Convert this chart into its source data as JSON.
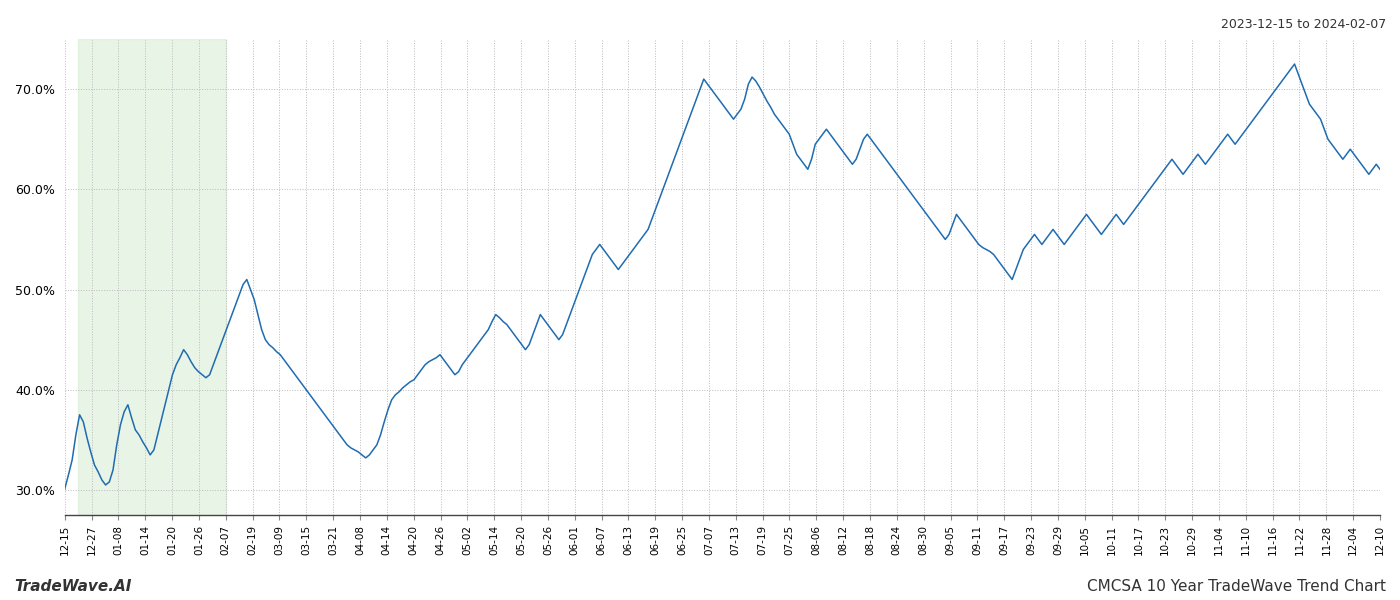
{
  "title_right": "2023-12-15 to 2024-02-07",
  "footer_left": "TradeWave.AI",
  "footer_right": "CMCSA 10 Year TradeWave Trend Chart",
  "line_color": "#1f6cb0",
  "shade_color": "#d6ecd2",
  "shade_alpha": 0.55,
  "background_color": "#ffffff",
  "grid_color": "#bbbbbb",
  "ylim": [
    27.5,
    75.0
  ],
  "yticks": [
    30.0,
    40.0,
    50.0,
    60.0,
    70.0
  ],
  "xtick_labels": [
    "12-15",
    "12-27",
    "01-08",
    "01-14",
    "01-20",
    "01-26",
    "02-07",
    "02-19",
    "03-09",
    "03-15",
    "03-21",
    "04-08",
    "04-14",
    "04-20",
    "04-26",
    "05-02",
    "05-14",
    "05-20",
    "05-26",
    "06-01",
    "06-07",
    "06-13",
    "06-19",
    "06-25",
    "07-07",
    "07-13",
    "07-19",
    "07-25",
    "08-06",
    "08-12",
    "08-18",
    "08-24",
    "08-30",
    "09-05",
    "09-11",
    "09-17",
    "09-23",
    "09-29",
    "10-05",
    "10-11",
    "10-17",
    "10-23",
    "10-29",
    "11-04",
    "11-10",
    "11-16",
    "11-22",
    "11-28",
    "12-04",
    "12-10"
  ],
  "shade_xstart_label": "12-21",
  "shade_xend_label": "02-07",
  "values": [
    30.1,
    31.5,
    33.0,
    35.5,
    37.5,
    36.8,
    35.2,
    33.8,
    32.5,
    31.8,
    31.0,
    30.5,
    30.8,
    32.0,
    34.5,
    36.5,
    37.8,
    38.5,
    37.2,
    36.0,
    35.5,
    34.8,
    34.2,
    33.5,
    34.0,
    35.5,
    37.0,
    38.5,
    40.0,
    41.5,
    42.5,
    43.2,
    44.0,
    43.5,
    42.8,
    42.2,
    41.8,
    41.5,
    41.2,
    41.5,
    42.5,
    43.5,
    44.5,
    45.5,
    46.5,
    47.5,
    48.5,
    49.5,
    50.5,
    51.0,
    50.0,
    49.0,
    47.5,
    46.0,
    45.0,
    44.5,
    44.2,
    43.8,
    43.5,
    43.0,
    42.5,
    42.0,
    41.5,
    41.0,
    40.5,
    40.0,
    39.5,
    39.0,
    38.5,
    38.0,
    37.5,
    37.0,
    36.5,
    36.0,
    35.5,
    35.0,
    34.5,
    34.2,
    34.0,
    33.8,
    33.5,
    33.2,
    33.5,
    34.0,
    34.5,
    35.5,
    36.8,
    38.0,
    39.0,
    39.5,
    39.8,
    40.2,
    40.5,
    40.8,
    41.0,
    41.5,
    42.0,
    42.5,
    42.8,
    43.0,
    43.2,
    43.5,
    43.0,
    42.5,
    42.0,
    41.5,
    41.8,
    42.5,
    43.0,
    43.5,
    44.0,
    44.5,
    45.0,
    45.5,
    46.0,
    46.8,
    47.5,
    47.2,
    46.8,
    46.5,
    46.0,
    45.5,
    45.0,
    44.5,
    44.0,
    44.5,
    45.5,
    46.5,
    47.5,
    47.0,
    46.5,
    46.0,
    45.5,
    45.0,
    45.5,
    46.5,
    47.5,
    48.5,
    49.5,
    50.5,
    51.5,
    52.5,
    53.5,
    54.0,
    54.5,
    54.0,
    53.5,
    53.0,
    52.5,
    52.0,
    52.5,
    53.0,
    53.5,
    54.0,
    54.5,
    55.0,
    55.5,
    56.0,
    57.0,
    58.0,
    59.0,
    60.0,
    61.0,
    62.0,
    63.0,
    64.0,
    65.0,
    66.0,
    67.0,
    68.0,
    69.0,
    70.0,
    71.0,
    70.5,
    70.0,
    69.5,
    69.0,
    68.5,
    68.0,
    67.5,
    67.0,
    67.5,
    68.0,
    69.0,
    70.5,
    71.2,
    70.8,
    70.2,
    69.5,
    68.8,
    68.2,
    67.5,
    67.0,
    66.5,
    66.0,
    65.5,
    64.5,
    63.5,
    63.0,
    62.5,
    62.0,
    63.0,
    64.5,
    65.0,
    65.5,
    66.0,
    65.5,
    65.0,
    64.5,
    64.0,
    63.5,
    63.0,
    62.5,
    63.0,
    64.0,
    65.0,
    65.5,
    65.0,
    64.5,
    64.0,
    63.5,
    63.0,
    62.5,
    62.0,
    61.5,
    61.0,
    60.5,
    60.0,
    59.5,
    59.0,
    58.5,
    58.0,
    57.5,
    57.0,
    56.5,
    56.0,
    55.5,
    55.0,
    55.5,
    56.5,
    57.5,
    57.0,
    56.5,
    56.0,
    55.5,
    55.0,
    54.5,
    54.2,
    54.0,
    53.8,
    53.5,
    53.0,
    52.5,
    52.0,
    51.5,
    51.0,
    52.0,
    53.0,
    54.0,
    54.5,
    55.0,
    55.5,
    55.0,
    54.5,
    55.0,
    55.5,
    56.0,
    55.5,
    55.0,
    54.5,
    55.0,
    55.5,
    56.0,
    56.5,
    57.0,
    57.5,
    57.0,
    56.5,
    56.0,
    55.5,
    56.0,
    56.5,
    57.0,
    57.5,
    57.0,
    56.5,
    57.0,
    57.5,
    58.0,
    58.5,
    59.0,
    59.5,
    60.0,
    60.5,
    61.0,
    61.5,
    62.0,
    62.5,
    63.0,
    62.5,
    62.0,
    61.5,
    62.0,
    62.5,
    63.0,
    63.5,
    63.0,
    62.5,
    63.0,
    63.5,
    64.0,
    64.5,
    65.0,
    65.5,
    65.0,
    64.5,
    65.0,
    65.5,
    66.0,
    66.5,
    67.0,
    67.5,
    68.0,
    68.5,
    69.0,
    69.5,
    70.0,
    70.5,
    71.0,
    71.5,
    72.0,
    72.5,
    71.5,
    70.5,
    69.5,
    68.5,
    68.0,
    67.5,
    67.0,
    66.0,
    65.0,
    64.5,
    64.0,
    63.5,
    63.0,
    63.5,
    64.0,
    63.5,
    63.0,
    62.5,
    62.0,
    61.5,
    62.0,
    62.5,
    62.0
  ]
}
